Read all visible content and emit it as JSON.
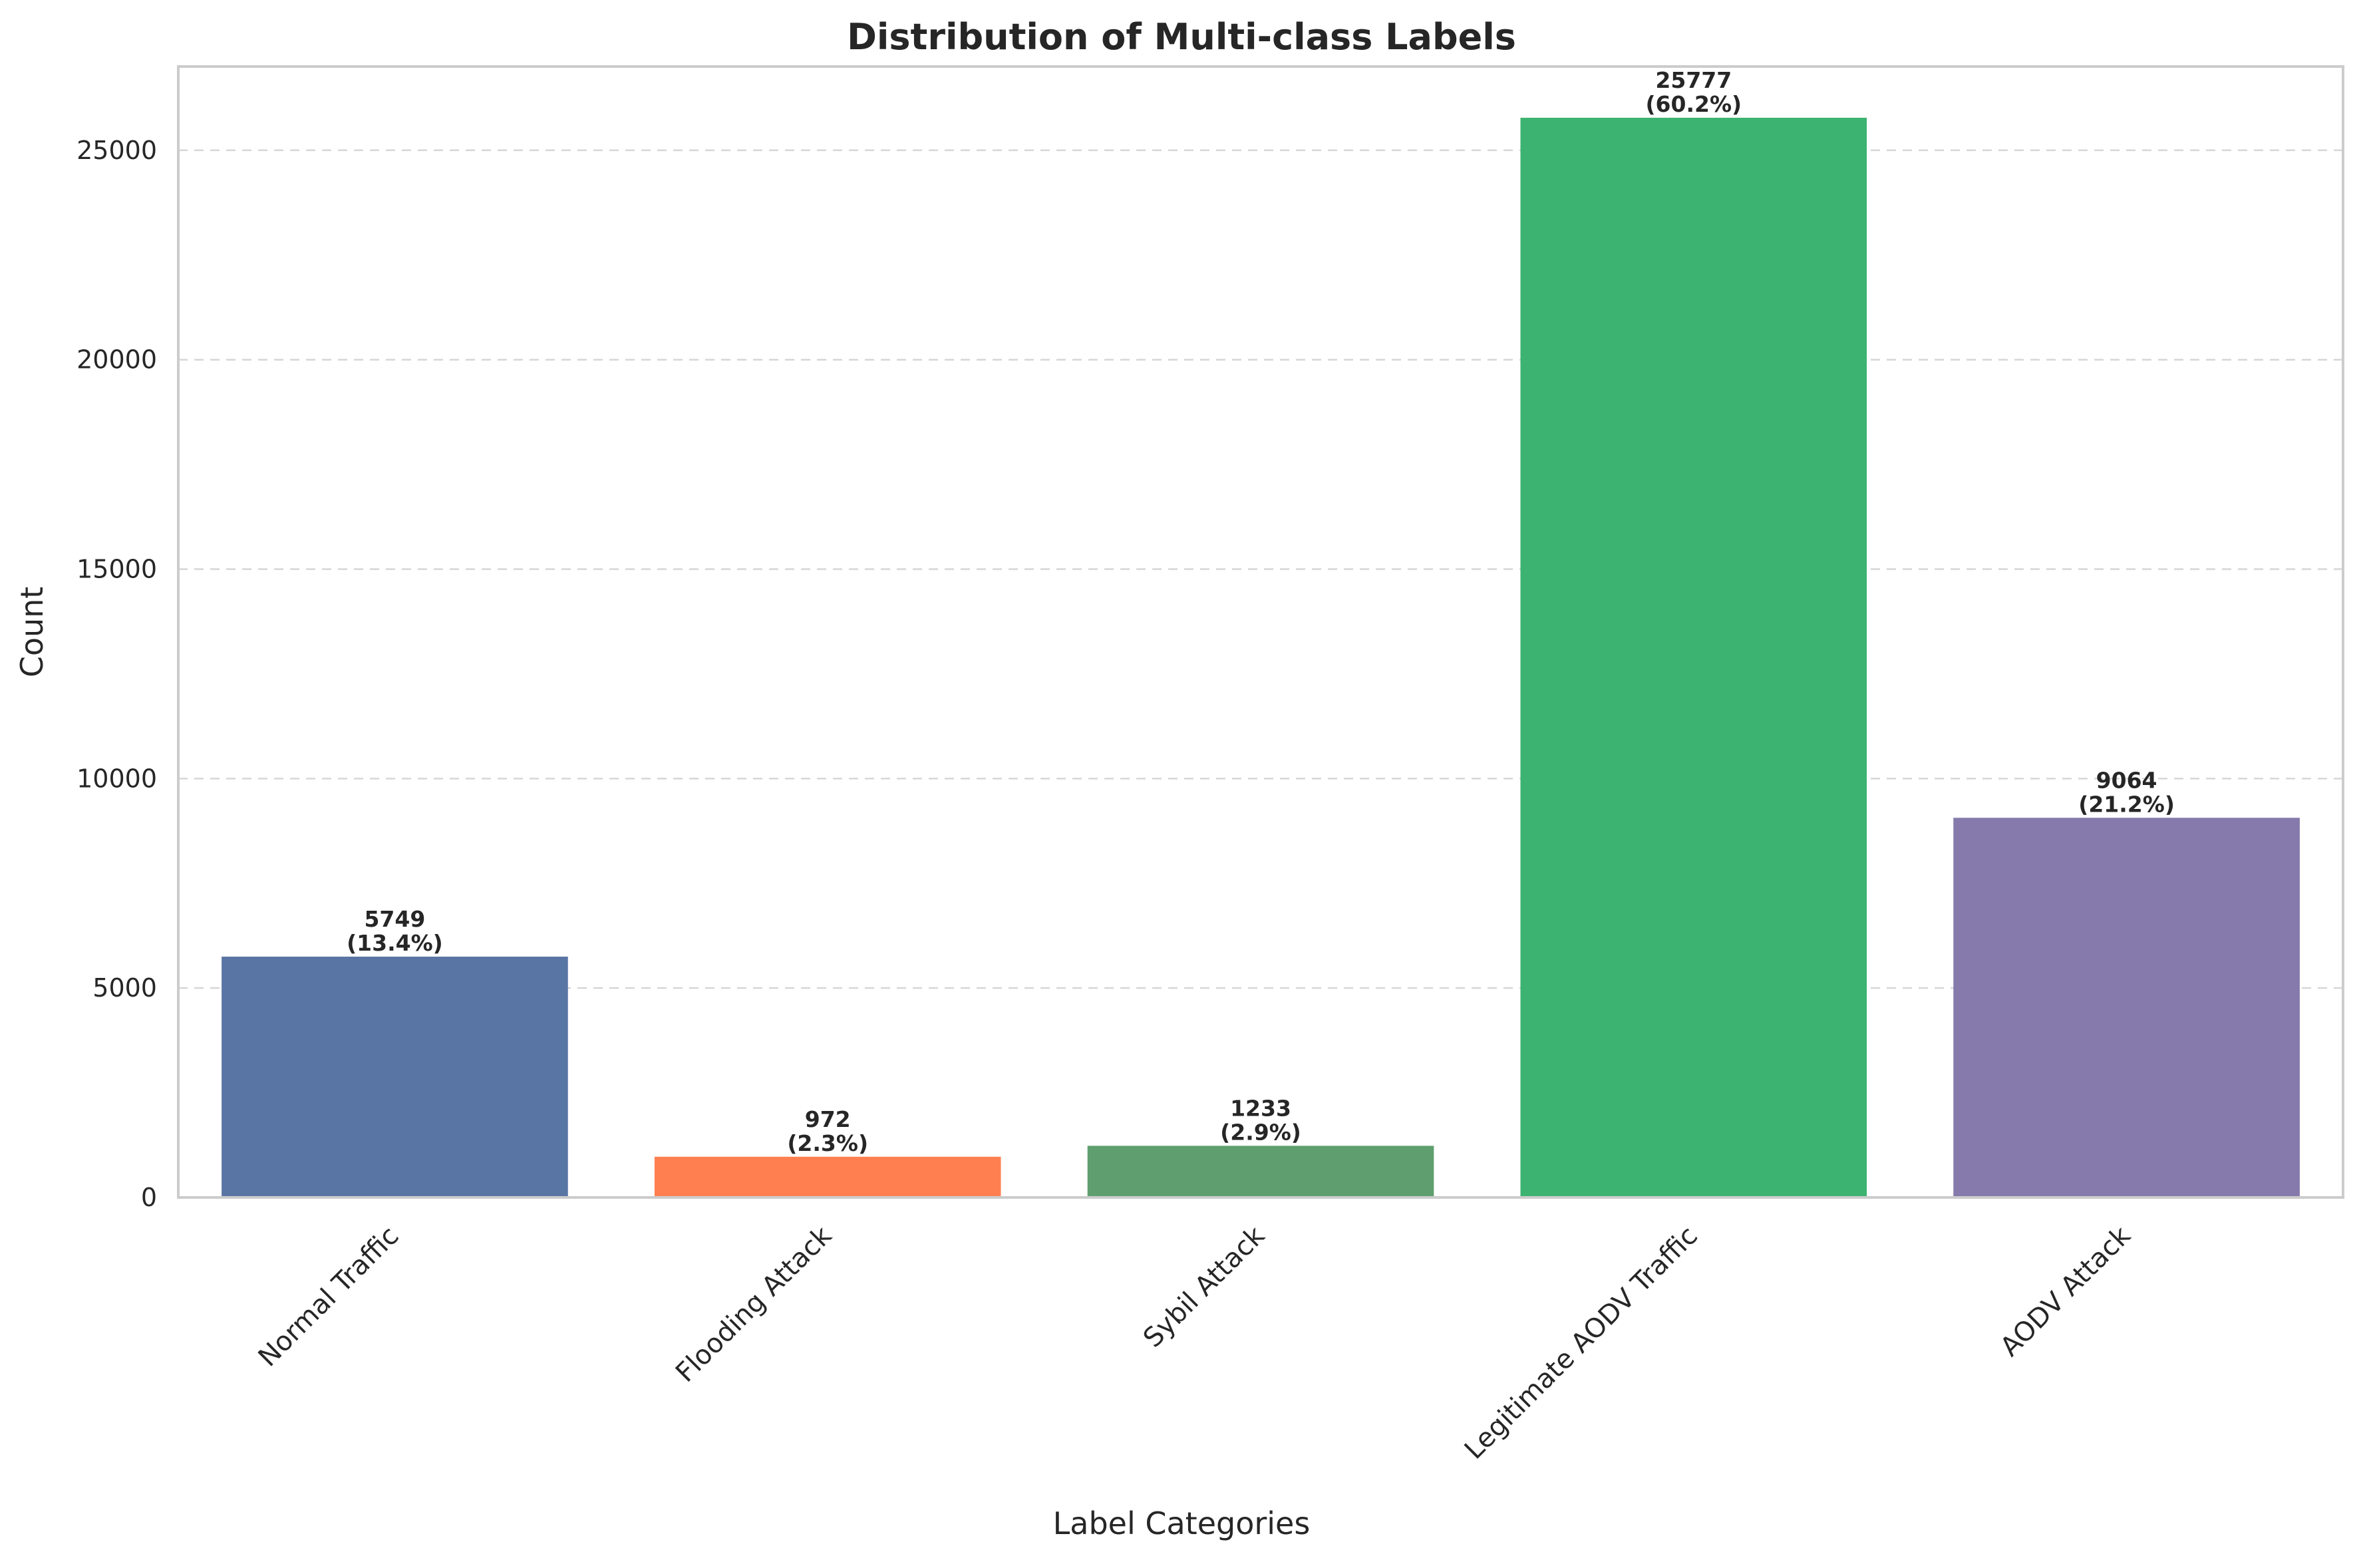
{
  "chart_data": {
    "type": "bar",
    "title": "Distribution of Multi-class Labels",
    "xlabel": "Label Categories",
    "ylabel": "Count",
    "categories": [
      "Normal Traffic",
      "Flooding Attack",
      "Sybil Attack",
      "Legitimate AODV Traffic",
      "AODV Attack"
    ],
    "values": [
      5749,
      972,
      1233,
      25777,
      9064
    ],
    "percent_labels": [
      "(13.4%)",
      "(2.3%)",
      "(2.9%)",
      "(60.2%)",
      "(21.2%)"
    ],
    "colors": [
      "#5975a4",
      "#ff7f50",
      "#5f9e6e",
      "#3cb371",
      "#857aab"
    ],
    "ylim": [
      0,
      27000
    ],
    "yticks": [
      0,
      5000,
      10000,
      15000,
      20000,
      25000
    ],
    "grid": "y-dashed",
    "legend": "none"
  }
}
